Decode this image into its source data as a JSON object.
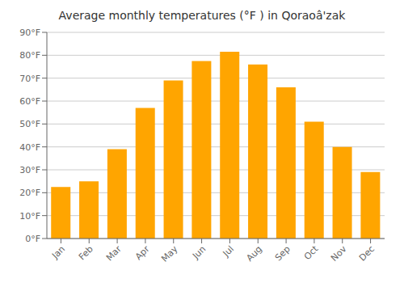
{
  "chart_data": {
    "type": "bar",
    "title": "Average monthly temperatures (°F ) in Qoraoâ'zak",
    "categories": [
      "Jan",
      "Feb",
      "Mar",
      "Apr",
      "May",
      "Jun",
      "Jul",
      "Aug",
      "Sep",
      "Oct",
      "Nov",
      "Dec"
    ],
    "values": [
      22.5,
      25.0,
      39.0,
      57.0,
      69.0,
      77.5,
      81.5,
      76.0,
      66.0,
      51.0,
      40.0,
      29.0
    ],
    "color": "#FFA500",
    "ylim": [
      0,
      90
    ],
    "yticks": [
      {
        "value": 0,
        "label": "0°F"
      },
      {
        "value": 10,
        "label": "10°F"
      },
      {
        "value": 20,
        "label": "20°F"
      },
      {
        "value": 30,
        "label": "30°F"
      },
      {
        "value": 40,
        "label": "40°F"
      },
      {
        "value": 50,
        "label": "50°F"
      },
      {
        "value": 60,
        "label": "60°F"
      },
      {
        "value": 70,
        "label": "70°F"
      },
      {
        "value": 80,
        "label": "80°F"
      },
      {
        "value": 90,
        "label": "90°F"
      }
    ],
    "grid": true
  }
}
